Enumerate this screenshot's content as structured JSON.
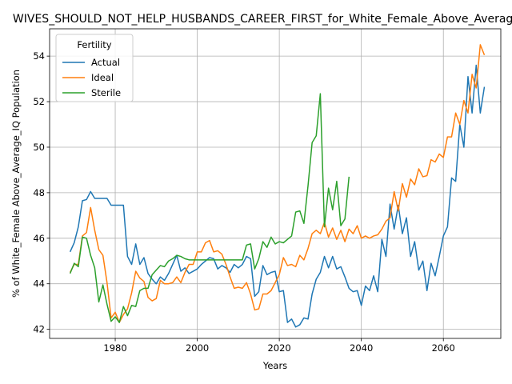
{
  "chart_data": {
    "type": "line",
    "title": "WIVES_SHOULD_NOT_HELP_HUSBANDS_CAREER_FIRST_for_White_Female_Above_Average_IQ",
    "xlabel": "Years",
    "ylabel": "% of White_Female Above_Average_IQ Population",
    "xlim": [
      1964,
      2074
    ],
    "ylim": [
      41.6,
      55.2
    ],
    "xticks": [
      1980,
      2000,
      2020,
      2040,
      2060
    ],
    "yticks": [
      42,
      44,
      46,
      48,
      50,
      52,
      54
    ],
    "grid": true,
    "legend": {
      "title": "Fertility",
      "placement": "top-left"
    },
    "series": [
      {
        "name": "Actual",
        "color": "#1f77b4",
        "x": [
          1969,
          1970,
          1971,
          1972,
          1973,
          1974,
          1975,
          1976,
          1977,
          1978,
          1979,
          1980,
          1981,
          1982,
          1983,
          1984,
          1985,
          1986,
          1987,
          1988,
          1989,
          1990,
          1991,
          1992,
          1993,
          1994,
          1995,
          1996,
          1997,
          1998,
          1999,
          2000,
          2001,
          2002,
          2003,
          2004,
          2005,
          2006,
          2007,
          2008,
          2009,
          2010,
          2011,
          2012,
          2013,
          2014,
          2015,
          2016,
          2017,
          2018,
          2019,
          2020,
          2021,
          2022,
          2023,
          2024,
          2025,
          2026,
          2027,
          2028,
          2029,
          2030,
          2031,
          2032,
          2033,
          2034,
          2035,
          2036,
          2037,
          2038,
          2039,
          2040,
          2041,
          2042,
          2043,
          2044,
          2045,
          2046,
          2047,
          2048,
          2049,
          2050,
          2051,
          2052,
          2053,
          2054,
          2055,
          2056,
          2057,
          2058,
          2059,
          2060,
          2061,
          2062,
          2063,
          2064,
          2065,
          2066,
          2067,
          2068,
          2069,
          2070
        ],
        "y": [
          45.4,
          45.8,
          46.5,
          47.65,
          47.7,
          48.05,
          47.75,
          47.75,
          47.75,
          47.75,
          47.45,
          47.45,
          47.45,
          47.45,
          45.2,
          44.85,
          45.75,
          44.85,
          45.15,
          44.45,
          44.2,
          44.0,
          44.3,
          44.15,
          44.45,
          44.85,
          45.25,
          44.55,
          44.7,
          44.45,
          44.55,
          44.65,
          44.85,
          45.0,
          45.15,
          45.1,
          44.65,
          44.8,
          44.7,
          44.5,
          44.85,
          44.7,
          44.85,
          45.2,
          45.1,
          43.45,
          43.65,
          44.8,
          44.4,
          44.5,
          44.55,
          43.65,
          43.7,
          42.3,
          42.45,
          42.1,
          42.2,
          42.5,
          42.45,
          43.55,
          44.2,
          44.5,
          45.2,
          44.7,
          45.2,
          44.65,
          44.75,
          44.3,
          43.8,
          43.65,
          43.7,
          43.05,
          43.9,
          43.7,
          44.35,
          43.65,
          45.95,
          45.2,
          47.5,
          46.4,
          47.45,
          46.2,
          46.9,
          45.2,
          45.85,
          44.6,
          45.0,
          43.7,
          44.9,
          44.35,
          45.2,
          46.1,
          46.5,
          48.65,
          48.5,
          51.0,
          50.0,
          53.1,
          51.5,
          53.6,
          51.5,
          52.65
        ]
      },
      {
        "name": "Ideal",
        "color": "#ff7f0e",
        "x": [
          1969,
          1970,
          1971,
          1972,
          1973,
          1974,
          1975,
          1976,
          1977,
          1978,
          1979,
          1980,
          1981,
          1982,
          1983,
          1984,
          1985,
          1986,
          1987,
          1988,
          1989,
          1990,
          1991,
          1992,
          1993,
          1994,
          1995,
          1996,
          1997,
          1998,
          1999,
          2000,
          2001,
          2002,
          2003,
          2004,
          2005,
          2006,
          2007,
          2008,
          2009,
          2010,
          2011,
          2012,
          2013,
          2014,
          2015,
          2016,
          2017,
          2018,
          2019,
          2020,
          2021,
          2022,
          2023,
          2024,
          2025,
          2026,
          2027,
          2028,
          2029,
          2030,
          2031,
          2032,
          2033,
          2034,
          2035,
          2036,
          2037,
          2038,
          2039,
          2040,
          2041,
          2042,
          2043,
          2044,
          2045,
          2046,
          2047,
          2048,
          2049,
          2050,
          2051,
          2052,
          2053,
          2054,
          2055,
          2056,
          2057,
          2058,
          2059,
          2060,
          2061,
          2062,
          2063,
          2064,
          2065,
          2066,
          2067,
          2068,
          2069,
          2070
        ],
        "y": [
          44.5,
          44.85,
          44.85,
          46.1,
          46.25,
          47.35,
          46.35,
          45.5,
          45.25,
          44.05,
          42.5,
          42.75,
          42.3,
          42.65,
          42.9,
          43.6,
          44.55,
          44.25,
          44.1,
          43.4,
          43.25,
          43.35,
          44.15,
          44.0,
          44.0,
          44.05,
          44.3,
          44.05,
          44.5,
          44.85,
          44.85,
          45.4,
          45.4,
          45.8,
          45.9,
          45.4,
          45.45,
          45.3,
          44.85,
          44.3,
          43.8,
          43.85,
          43.8,
          44.05,
          43.55,
          42.85,
          42.9,
          43.55,
          43.55,
          43.7,
          44.05,
          44.4,
          45.15,
          44.8,
          44.85,
          44.75,
          45.25,
          45.05,
          45.55,
          46.2,
          46.35,
          46.2,
          46.7,
          46.05,
          46.45,
          45.95,
          46.35,
          45.85,
          46.4,
          46.2,
          46.55,
          46.0,
          46.1,
          46.0,
          46.1,
          46.15,
          46.4,
          46.75,
          46.9,
          48.05,
          47.2,
          48.4,
          47.8,
          48.6,
          48.35,
          49.05,
          48.7,
          48.75,
          49.45,
          49.35,
          49.7,
          49.55,
          50.45,
          50.45,
          51.5,
          51.0,
          52.05,
          51.5,
          53.2,
          52.6,
          54.5,
          54.05
        ]
      },
      {
        "name": "Sterile",
        "color": "#2ca02c",
        "x": [
          1969,
          1970,
          1971,
          1972,
          1973,
          1974,
          1975,
          1976,
          1977,
          1978,
          1979,
          1980,
          1981,
          1982,
          1983,
          1984,
          1985,
          1986,
          1987,
          1988,
          1989,
          1990,
          1991,
          1992,
          1993,
          1994,
          1995,
          1996,
          1997,
          1998,
          1999,
          2000,
          2001,
          2002,
          2003,
          2004,
          2005,
          2006,
          2007,
          2008,
          2009,
          2010,
          2011,
          2012,
          2013,
          2014,
          2015,
          2016,
          2017,
          2018,
          2019,
          2020,
          2021,
          2022,
          2023,
          2024,
          2025,
          2026,
          2027,
          2028,
          2029,
          2030,
          2031,
          2032,
          2033,
          2034,
          2035,
          2036,
          2037
        ],
        "y": [
          44.45,
          44.9,
          44.75,
          46.05,
          46.0,
          45.25,
          44.7,
          43.2,
          43.95,
          43.1,
          42.35,
          42.55,
          42.3,
          43.0,
          42.6,
          43.05,
          43.0,
          43.7,
          43.8,
          43.8,
          44.4,
          44.6,
          44.8,
          44.75,
          45.0,
          45.1,
          45.25,
          45.2,
          45.1,
          45.05,
          45.05,
          45.05,
          45.05,
          45.05,
          45.05,
          45.05,
          45.05,
          45.05,
          45.05,
          45.05,
          45.05,
          45.05,
          45.05,
          45.7,
          45.75,
          44.65,
          45.1,
          45.85,
          45.6,
          46.05,
          45.75,
          45.85,
          45.8,
          45.95,
          46.1,
          47.15,
          47.2,
          46.65,
          48.3,
          50.2,
          50.5,
          52.35,
          46.5,
          48.2,
          47.25,
          48.5,
          46.55,
          46.85,
          48.7
        ]
      }
    ]
  }
}
